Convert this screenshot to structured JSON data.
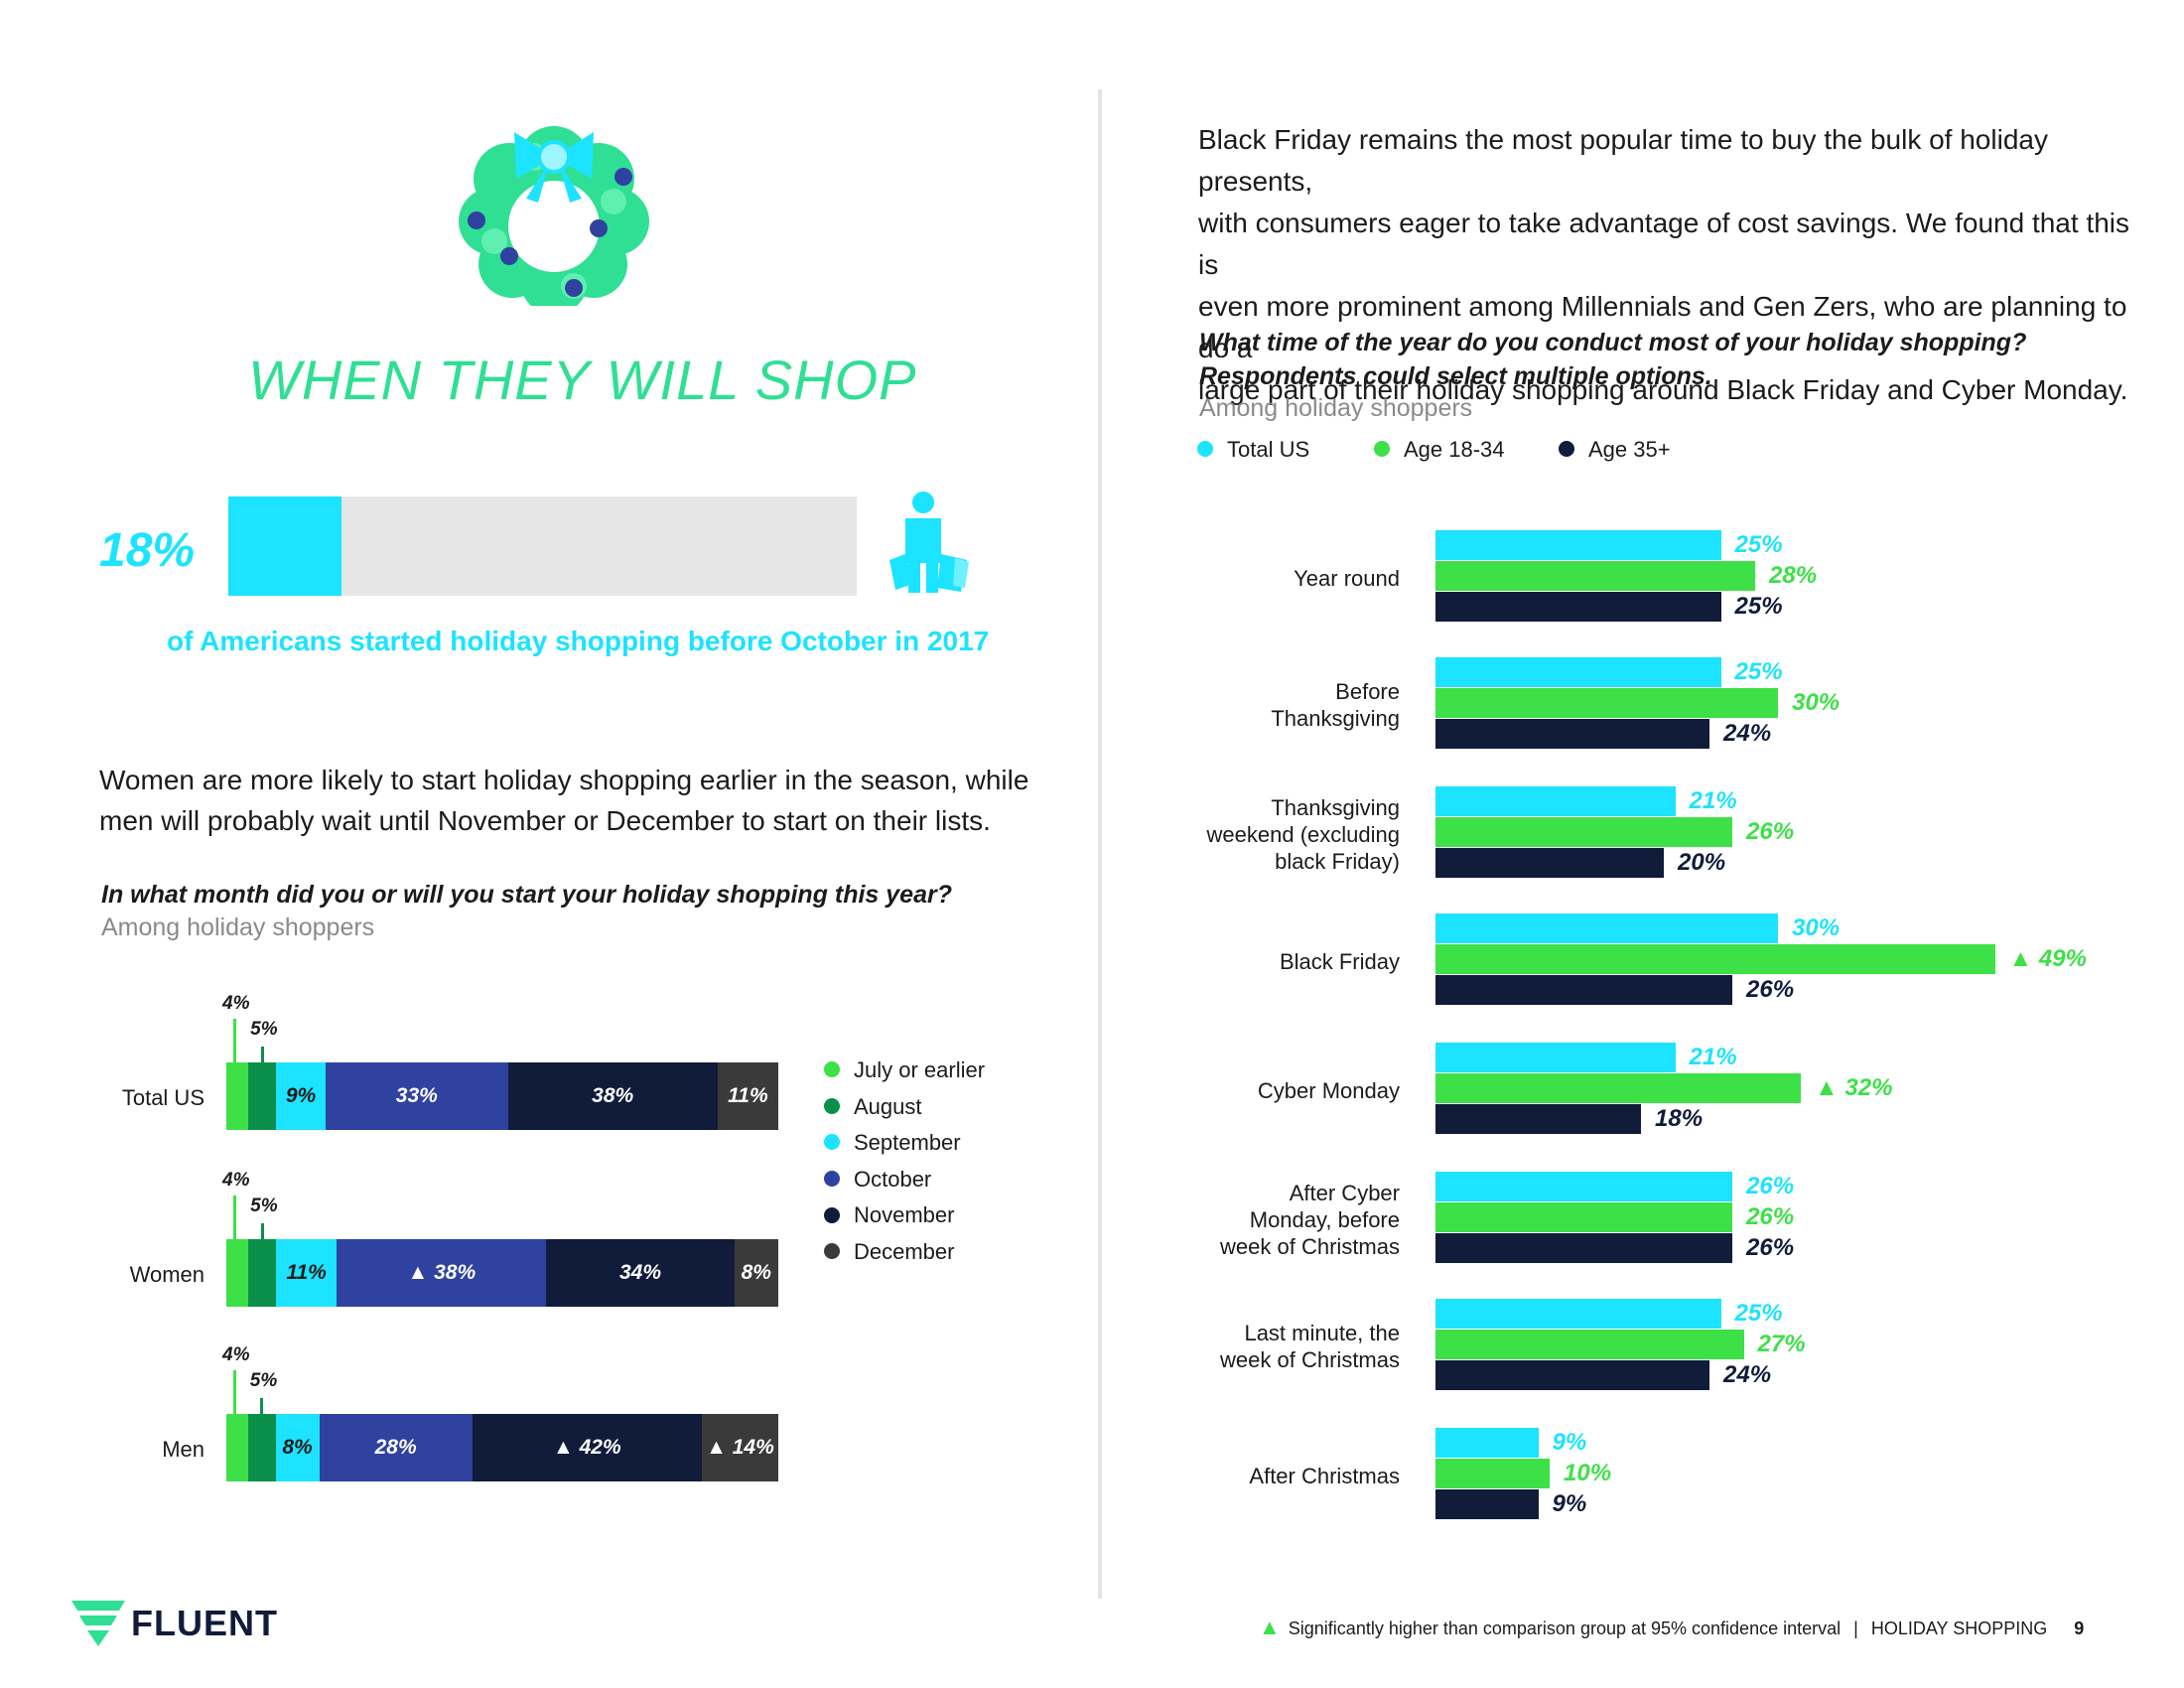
{
  "left": {
    "title": "WHEN THEY WILL SHOP",
    "stat": {
      "value_label": "18%",
      "fraction": 0.18,
      "caption": "of Americans started holiday shopping before October in 2017"
    },
    "paragraph_line1": "Women are more likely to start holiday shopping earlier in the season, while",
    "paragraph_line2": "men will probably wait until November or December to start on their lists.",
    "question": "In what month did you or will you start your holiday shopping this year?",
    "subtitle": "Among holiday shoppers"
  },
  "right": {
    "paragraph_line1": "Black Friday remains the most popular time to buy the bulk of holiday presents,",
    "paragraph_line2": "with consumers eager to take advantage of cost savings. We found that this is",
    "paragraph_line3": "even more prominent among Millennials and Gen Zers, who are planning to do a",
    "paragraph_line4": "large part of their holiday shopping around Black Friday and Cyber Monday.",
    "question_line1": "What time of the year do you conduct most of your holiday shopping?",
    "question_line2": "Respondents could select multiple options.",
    "subtitle": "Among holiday shoppers"
  },
  "colors": {
    "cyan": "#1ce3ff",
    "green": "#3de047",
    "navy": "#111b3a",
    "dark_green": "#0a8f4b",
    "october": "#2f42a0",
    "december": "#3a3a3a",
    "accent": "#2fdf93"
  },
  "chart_data": [
    {
      "type": "bar",
      "orientation": "horizontal-stacked",
      "title": "In what month did you or will you start your holiday shopping this year?",
      "categories": [
        "Total US",
        "Women",
        "Men"
      ],
      "series": [
        {
          "name": "July or earlier",
          "color": "#3de047",
          "values": [
            4,
            4,
            4
          ]
        },
        {
          "name": "August",
          "color": "#0a8f4b",
          "values": [
            5,
            5,
            5
          ]
        },
        {
          "name": "September",
          "color": "#1ce3ff",
          "values": [
            9,
            11,
            8
          ]
        },
        {
          "name": "October",
          "color": "#2f42a0",
          "values": [
            33,
            38,
            28
          ]
        },
        {
          "name": "November",
          "color": "#111b3a",
          "values": [
            38,
            34,
            42
          ]
        },
        {
          "name": "December",
          "color": "#3a3a3a",
          "values": [
            11,
            8,
            14
          ]
        }
      ],
      "labels": [
        [
          "4%",
          "5%",
          "9%",
          "33%",
          "38%",
          "11%"
        ],
        [
          "4%",
          "5%",
          "11%",
          "38%",
          "34%",
          "8%"
        ],
        [
          "4%",
          "5%",
          "8%",
          "28%",
          "42%",
          "14%"
        ]
      ],
      "significant": [
        [
          false,
          false,
          false,
          false,
          false,
          false
        ],
        [
          false,
          false,
          false,
          true,
          false,
          false
        ],
        [
          false,
          false,
          false,
          false,
          true,
          true
        ]
      ]
    },
    {
      "type": "bar",
      "orientation": "horizontal-grouped",
      "title": "What time of the year do you conduct most of your holiday shopping?",
      "xlim": [
        0,
        50
      ],
      "categories": [
        [
          "Year round"
        ],
        [
          "Before",
          "Thanksgiving"
        ],
        [
          "Thanksgiving",
          "weekend (excluding",
          "black Friday)"
        ],
        [
          "Black Friday"
        ],
        [
          "Cyber Monday"
        ],
        [
          "After Cyber",
          "Monday, before",
          "week of Christmas"
        ],
        [
          "Last minute, the",
          "week of Christmas"
        ],
        [
          "After Christmas"
        ]
      ],
      "series": [
        {
          "name": "Total US",
          "color": "#1ce3ff",
          "values": [
            25,
            25,
            21,
            30,
            21,
            26,
            25,
            9
          ]
        },
        {
          "name": "Age 18-34",
          "color": "#3de047",
          "values": [
            28,
            30,
            26,
            49,
            32,
            26,
            27,
            10
          ]
        },
        {
          "name": "Age 35+",
          "color": "#111b3a",
          "values": [
            25,
            24,
            20,
            26,
            18,
            26,
            24,
            9
          ]
        }
      ],
      "significant": [
        [
          false,
          false,
          false,
          false,
          false,
          false,
          false,
          false
        ],
        [
          false,
          false,
          false,
          true,
          true,
          false,
          false,
          false
        ],
        [
          false,
          false,
          false,
          false,
          false,
          false,
          false,
          false
        ]
      ]
    }
  ],
  "footer": {
    "logo": "FLUENT",
    "note": "Significantly higher than comparison group at 95% confidence interval",
    "section": "HOLIDAY SHOPPING",
    "page": "9"
  }
}
